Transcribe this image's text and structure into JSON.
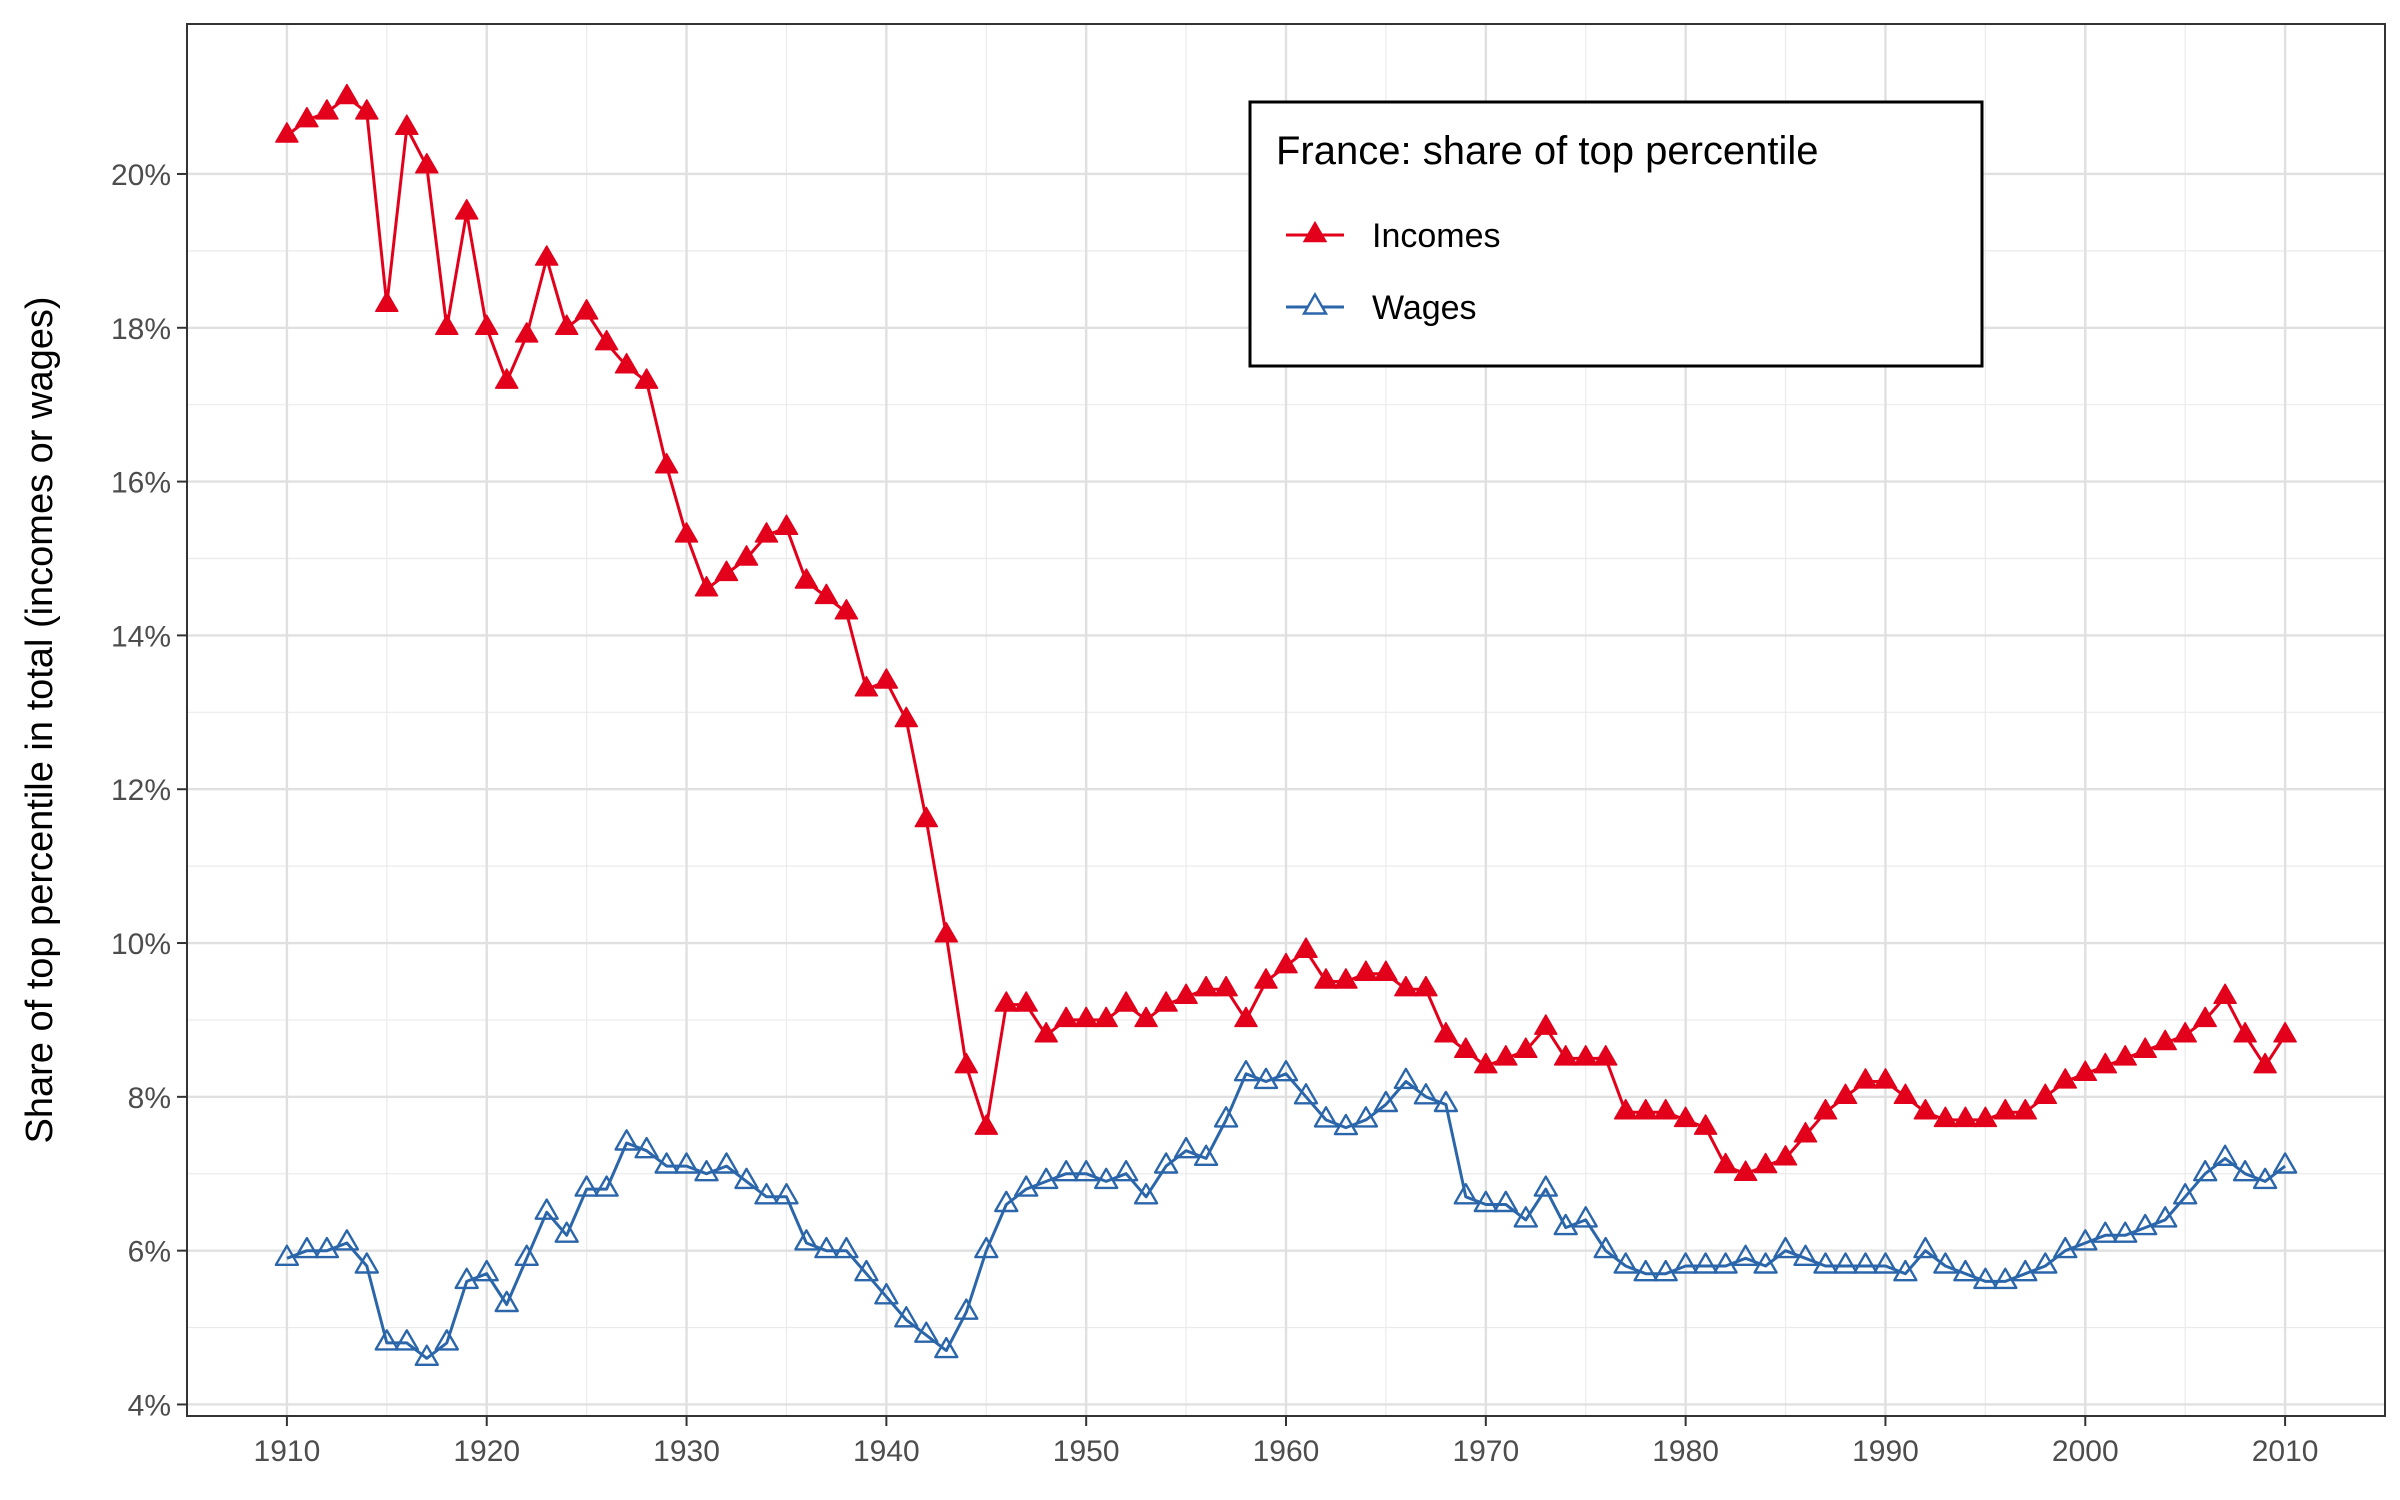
{
  "chart_data": {
    "type": "line",
    "title": "",
    "xlabel": "",
    "ylabel": "Share of top percentile in total (incomes or wages)",
    "xlim": [
      1905,
      2015
    ],
    "ylim": [
      0.0385,
      0.2195
    ],
    "x_ticks": [
      1910,
      1920,
      1930,
      1940,
      1950,
      1960,
      1970,
      1980,
      1990,
      2000,
      2010
    ],
    "x_tick_labels": [
      "1910",
      "1920",
      "1930",
      "1940",
      "1950",
      "1960",
      "1970",
      "1980",
      "1990",
      "2000",
      "2010"
    ],
    "y_ticks": [
      0.04,
      0.06,
      0.08,
      0.1,
      0.12,
      0.14,
      0.16,
      0.18,
      0.2
    ],
    "y_tick_labels": [
      "4%",
      "6%",
      "8%",
      "10%",
      "12%",
      "14%",
      "16%",
      "18%",
      "20%"
    ],
    "grid": true,
    "legend": {
      "title": "France: share of top percentile",
      "position": "top-right-inside"
    },
    "x": [
      1910,
      1911,
      1912,
      1913,
      1914,
      1915,
      1916,
      1917,
      1918,
      1919,
      1920,
      1921,
      1922,
      1923,
      1924,
      1925,
      1926,
      1927,
      1928,
      1929,
      1930,
      1931,
      1932,
      1933,
      1934,
      1935,
      1936,
      1937,
      1938,
      1939,
      1940,
      1941,
      1942,
      1943,
      1944,
      1945,
      1946,
      1947,
      1948,
      1949,
      1950,
      1951,
      1952,
      1953,
      1954,
      1955,
      1956,
      1957,
      1958,
      1959,
      1960,
      1961,
      1962,
      1963,
      1964,
      1965,
      1966,
      1967,
      1968,
      1969,
      1970,
      1971,
      1972,
      1973,
      1974,
      1975,
      1976,
      1977,
      1978,
      1979,
      1980,
      1981,
      1982,
      1983,
      1984,
      1985,
      1986,
      1987,
      1988,
      1989,
      1990,
      1991,
      1992,
      1993,
      1994,
      1995,
      1996,
      1997,
      1998,
      1999,
      2000,
      2001,
      2002,
      2003,
      2004,
      2005,
      2006,
      2007,
      2008,
      2009,
      2010
    ],
    "series": [
      {
        "name": "Incomes",
        "color": "#e3001b",
        "marker": "filled-triangle",
        "values": [
          0.205,
          0.207,
          0.208,
          0.21,
          0.208,
          0.183,
          0.206,
          0.201,
          0.18,
          0.195,
          0.18,
          0.173,
          0.179,
          0.189,
          0.18,
          0.182,
          0.178,
          0.175,
          0.173,
          0.162,
          0.153,
          0.146,
          0.148,
          0.15,
          0.153,
          0.154,
          0.147,
          0.145,
          0.143,
          0.133,
          0.134,
          0.129,
          0.116,
          0.101,
          0.084,
          0.076,
          0.092,
          0.092,
          0.088,
          0.09,
          0.09,
          0.09,
          0.092,
          0.09,
          0.092,
          0.093,
          0.094,
          0.094,
          0.09,
          0.095,
          0.097,
          0.099,
          0.095,
          0.095,
          0.096,
          0.096,
          0.094,
          0.094,
          0.088,
          0.086,
          0.084,
          0.085,
          0.086,
          0.089,
          0.085,
          0.085,
          0.085,
          0.078,
          0.078,
          0.078,
          0.077,
          0.076,
          0.071,
          0.07,
          0.071,
          0.072,
          0.075,
          0.078,
          0.08,
          0.082,
          0.082,
          0.08,
          0.078,
          0.077,
          0.077,
          0.077,
          0.078,
          0.078,
          0.08,
          0.082,
          0.083,
          0.084,
          0.085,
          0.086,
          0.087,
          0.088,
          0.09,
          0.093,
          0.088,
          0.084,
          0.088
        ]
      },
      {
        "name": "Wages",
        "color": "#2b66aa",
        "marker": "open-triangle",
        "values": [
          0.059,
          0.06,
          0.06,
          0.061,
          0.058,
          0.048,
          0.048,
          0.046,
          0.048,
          0.056,
          0.057,
          0.053,
          0.059,
          0.065,
          0.062,
          0.068,
          0.068,
          0.074,
          0.073,
          0.071,
          0.071,
          0.07,
          0.071,
          0.069,
          0.067,
          0.067,
          0.061,
          0.06,
          0.06,
          0.057,
          0.054,
          0.051,
          0.049,
          0.047,
          0.052,
          0.06,
          0.066,
          0.068,
          0.069,
          0.07,
          0.07,
          0.069,
          0.07,
          0.067,
          0.071,
          0.073,
          0.072,
          0.077,
          0.083,
          0.082,
          0.083,
          0.08,
          0.077,
          0.076,
          0.077,
          0.079,
          0.082,
          0.08,
          0.079,
          0.067,
          0.066,
          0.066,
          0.064,
          0.068,
          0.063,
          0.064,
          0.06,
          0.058,
          0.057,
          0.057,
          0.058,
          0.058,
          0.058,
          0.059,
          0.058,
          0.06,
          0.059,
          0.058,
          0.058,
          0.058,
          0.058,
          0.057,
          0.06,
          0.058,
          0.057,
          0.056,
          0.056,
          0.057,
          0.058,
          0.06,
          0.061,
          0.062,
          0.062,
          0.063,
          0.064,
          0.067,
          0.07,
          0.072,
          0.07,
          0.069,
          0.071
        ]
      }
    ]
  }
}
